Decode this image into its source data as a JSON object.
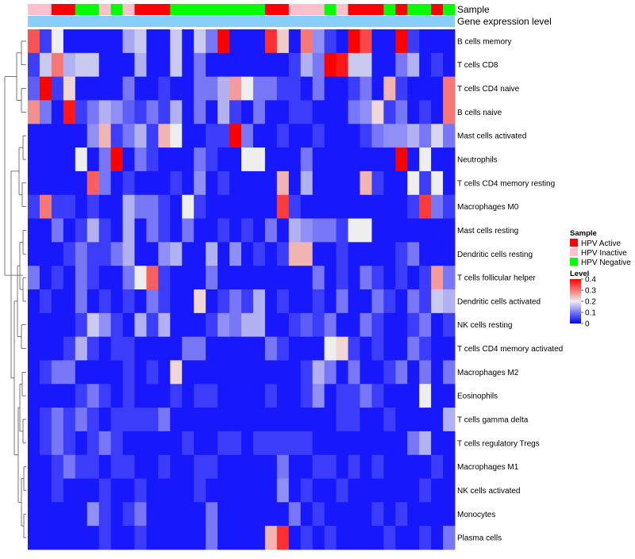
{
  "chart_data": {
    "type": "heatmap",
    "annotation_rows": [
      "Sample",
      "Gene expression level"
    ],
    "rows": [
      "B cells memory",
      "T cells CD8",
      "T cells CD4 naive",
      "B cells naive",
      "Mast cells activated",
      "Neutrophils",
      "T cells CD4 memory resting",
      "Macrophages M0",
      "Mast cells resting",
      "Dendritic cells resting",
      "T cells follicular helper",
      "Dendritic cells activated",
      "NK cells resting",
      "T cells CD4 memory activated",
      "Macrophages M2",
      "Eosinophils",
      "T cells gamma delta",
      "T cells regulatory  Tregs",
      "Macrophages M1",
      "NK cells activated",
      "Monocytes",
      "Plasma cells"
    ],
    "sample_groups": [
      "PI",
      "PI",
      "PA",
      "PA",
      "PN",
      "PN",
      "PI",
      "PN",
      "PI",
      "PA",
      "PA",
      "PA",
      "PN",
      "PN",
      "PN",
      "PN",
      "PN",
      "PN",
      "PN",
      "PN",
      "PA",
      "PA",
      "PI",
      "PI",
      "PI",
      "PN",
      "PI",
      "PA",
      "PA",
      "PA",
      "PN",
      "PA",
      "PN",
      "PN",
      "PA",
      "PN"
    ],
    "values": [
      [
        0.33,
        0.05,
        0.2,
        0.02,
        0.02,
        0.02,
        0.02,
        0.02,
        0.14,
        0.17,
        0.02,
        0.02,
        0.17,
        0.02,
        0.17,
        0.1,
        0.4,
        0.02,
        0.02,
        0.02,
        0.36,
        0.23,
        0.02,
        0.3,
        0.12,
        0.05,
        0.02,
        0.4,
        0.34,
        0.02,
        0.02,
        0.4,
        0.05,
        0.02,
        0.02,
        0.02
      ],
      [
        0.05,
        0.17,
        0.3,
        0.15,
        0.17,
        0.17,
        0.02,
        0.02,
        0.02,
        0.15,
        0.02,
        0.02,
        0.17,
        0.02,
        0.1,
        0.02,
        0.02,
        0.02,
        0.02,
        0.02,
        0.02,
        0.02,
        0.05,
        0.15,
        0.1,
        0.4,
        0.38,
        0.17,
        0.17,
        0.02,
        0.02,
        0.1,
        0.15,
        0.02,
        0.05,
        0.02
      ],
      [
        0.08,
        0.4,
        0.05,
        0.22,
        0.02,
        0.02,
        0.02,
        0.02,
        0.1,
        0.02,
        0.02,
        0.05,
        0.02,
        0.02,
        0.1,
        0.1,
        0.15,
        0.27,
        0.2,
        0.1,
        0.1,
        0.05,
        0.05,
        0.02,
        0.1,
        0.02,
        0.02,
        0.05,
        0.1,
        0.02,
        0.25,
        0.05,
        0.02,
        0.02,
        0.02,
        0.3
      ],
      [
        0.28,
        0.1,
        0.02,
        0.38,
        0.05,
        0.1,
        0.15,
        0.12,
        0.08,
        0.05,
        0.1,
        0.05,
        0.15,
        0.02,
        0.1,
        0.02,
        0.15,
        0.05,
        0.02,
        0.1,
        0.02,
        0.02,
        0.05,
        0.05,
        0.02,
        0.02,
        0.02,
        0.1,
        0.12,
        0.22,
        0.05,
        0.1,
        0.02,
        0.05,
        0.02,
        0.3
      ],
      [
        0.02,
        0.02,
        0.02,
        0.02,
        0.02,
        0.12,
        0.25,
        0.05,
        0.1,
        0.15,
        0.05,
        0.25,
        0.2,
        0.02,
        0.02,
        0.05,
        0.05,
        0.4,
        0.1,
        0.02,
        0.02,
        0.05,
        0.02,
        0.02,
        0.05,
        0.02,
        0.02,
        0.02,
        0.05,
        0.1,
        0.12,
        0.12,
        0.15,
        0.1,
        0.18,
        0.1
      ],
      [
        0.02,
        0.02,
        0.02,
        0.02,
        0.2,
        0.02,
        0.1,
        0.4,
        0.02,
        0.1,
        0.05,
        0.02,
        0.02,
        0.02,
        0.1,
        0.05,
        0.02,
        0.02,
        0.2,
        0.2,
        0.02,
        0.02,
        0.02,
        0.1,
        0.02,
        0.02,
        0.02,
        0.02,
        0.02,
        0.02,
        0.02,
        0.4,
        0.02,
        0.2,
        0.02,
        0.02
      ],
      [
        0.02,
        0.02,
        0.02,
        0.02,
        0.02,
        0.32,
        0.1,
        0.02,
        0.05,
        0.02,
        0.02,
        0.02,
        0.05,
        0.02,
        0.12,
        0.02,
        0.05,
        0.02,
        0.02,
        0.02,
        0.02,
        0.25,
        0.02,
        0.15,
        0.02,
        0.02,
        0.02,
        0.02,
        0.25,
        0.05,
        0.02,
        0.02,
        0.2,
        0.05,
        0.2,
        0.02
      ],
      [
        0.05,
        0.3,
        0.05,
        0.05,
        0.02,
        0.05,
        0.02,
        0.02,
        0.15,
        0.1,
        0.1,
        0.05,
        0.02,
        0.2,
        0.05,
        0.02,
        0.02,
        0.02,
        0.02,
        0.02,
        0.02,
        0.35,
        0.05,
        0.02,
        0.02,
        0.02,
        0.02,
        0.02,
        0.02,
        0.02,
        0.02,
        0.02,
        0.05,
        0.35,
        0.1,
        0.05
      ],
      [
        0.02,
        0.02,
        0.1,
        0.02,
        0.05,
        0.15,
        0.05,
        0.02,
        0.15,
        0.02,
        0.1,
        0.05,
        0.02,
        0.1,
        0.02,
        0.02,
        0.05,
        0.02,
        0.05,
        0.02,
        0.1,
        0.02,
        0.15,
        0.12,
        0.1,
        0.1,
        0.05,
        0.2,
        0.2,
        0.02,
        0.02,
        0.02,
        0.02,
        0.02,
        0.02,
        0.02
      ],
      [
        0.02,
        0.02,
        0.02,
        0.05,
        0.1,
        0.05,
        0.05,
        0.1,
        0.15,
        0.02,
        0.02,
        0.12,
        0.15,
        0.02,
        0.02,
        0.15,
        0.02,
        0.12,
        0.02,
        0.05,
        0.02,
        0.05,
        0.25,
        0.25,
        0.02,
        0.02,
        0.05,
        0.02,
        0.02,
        0.02,
        0.02,
        0.05,
        0.1,
        0.02,
        0.02,
        0.02
      ],
      [
        0.1,
        0.02,
        0.05,
        0.02,
        0.1,
        0.05,
        0.02,
        0.02,
        0.1,
        0.2,
        0.32,
        0.05,
        0.02,
        0.02,
        0.02,
        0.1,
        0.02,
        0.02,
        0.02,
        0.02,
        0.02,
        0.02,
        0.02,
        0.02,
        0.1,
        0.02,
        0.05,
        0.02,
        0.1,
        0.05,
        0.02,
        0.05,
        0.02,
        0.05,
        0.27,
        0.1
      ],
      [
        0.02,
        0.05,
        0.02,
        0.02,
        0.1,
        0.02,
        0.05,
        0.02,
        0.05,
        0.02,
        0.1,
        0.05,
        0.02,
        0.02,
        0.22,
        0.02,
        0.05,
        0.1,
        0.05,
        0.15,
        0.02,
        0.05,
        0.02,
        0.02,
        0.05,
        0.02,
        0.1,
        0.02,
        0.02,
        0.1,
        0.05,
        0.02,
        0.1,
        0.05,
        0.17,
        0.15
      ],
      [
        0.02,
        0.02,
        0.02,
        0.02,
        0.05,
        0.17,
        0.12,
        0.05,
        0.02,
        0.15,
        0.05,
        0.15,
        0.02,
        0.02,
        0.02,
        0.05,
        0.12,
        0.1,
        0.15,
        0.15,
        0.02,
        0.02,
        0.05,
        0.08,
        0.05,
        0.1,
        0.02,
        0.02,
        0.1,
        0.05,
        0.02,
        0.02,
        0.05,
        0.1,
        0.02,
        0.05
      ],
      [
        0.02,
        0.02,
        0.02,
        0.05,
        0.15,
        0.05,
        0.02,
        0.05,
        0.05,
        0.02,
        0.02,
        0.02,
        0.02,
        0.1,
        0.1,
        0.02,
        0.02,
        0.02,
        0.02,
        0.02,
        0.1,
        0.05,
        0.02,
        0.02,
        0.02,
        0.2,
        0.22,
        0.05,
        0.02,
        0.05,
        0.02,
        0.02,
        0.1,
        0.05,
        0.02,
        0.02
      ],
      [
        0.02,
        0.05,
        0.1,
        0.1,
        0.02,
        0.02,
        0.02,
        0.02,
        0.05,
        0.02,
        0.05,
        0.02,
        0.22,
        0.02,
        0.02,
        0.02,
        0.02,
        0.02,
        0.02,
        0.02,
        0.02,
        0.02,
        0.02,
        0.05,
        0.15,
        0.1,
        0.02,
        0.1,
        0.02,
        0.02,
        0.05,
        0.1,
        0.02,
        0.1,
        0.02,
        0.1
      ],
      [
        0.02,
        0.02,
        0.02,
        0.02,
        0.05,
        0.1,
        0.05,
        0.02,
        0.05,
        0.02,
        0.02,
        0.02,
        0.05,
        0.02,
        0.05,
        0.05,
        0.02,
        0.02,
        0.02,
        0.02,
        0.05,
        0.02,
        0.02,
        0.05,
        0.12,
        0.02,
        0.05,
        0.05,
        0.1,
        0.05,
        0.02,
        0.02,
        0.02,
        0.2,
        0.02,
        0.02
      ],
      [
        0.02,
        0.05,
        0.1,
        0.05,
        0.1,
        0.05,
        0.02,
        0.05,
        0.05,
        0.05,
        0.05,
        0.1,
        0.02,
        0.02,
        0.02,
        0.02,
        0.02,
        0.02,
        0.02,
        0.02,
        0.02,
        0.02,
        0.02,
        0.02,
        0.02,
        0.02,
        0.05,
        0.05,
        0.02,
        0.02,
        0.05,
        0.02,
        0.02,
        0.02,
        0.02,
        0.15
      ],
      [
        0.02,
        0.05,
        0.1,
        0.05,
        0.02,
        0.05,
        0.1,
        0.05,
        0.02,
        0.02,
        0.02,
        0.02,
        0.02,
        0.05,
        0.02,
        0.02,
        0.05,
        0.05,
        0.02,
        0.05,
        0.05,
        0.05,
        0.05,
        0.05,
        0.02,
        0.02,
        0.02,
        0.02,
        0.02,
        0.02,
        0.02,
        0.02,
        0.1,
        0.15,
        0.02,
        0.02
      ],
      [
        0.02,
        0.02,
        0.05,
        0.1,
        0.05,
        0.05,
        0.02,
        0.05,
        0.05,
        0.02,
        0.02,
        0.05,
        0.02,
        0.02,
        0.05,
        0.05,
        0.02,
        0.02,
        0.02,
        0.02,
        0.02,
        0.1,
        0.02,
        0.02,
        0.05,
        0.05,
        0.02,
        0.05,
        0.02,
        0.05,
        0.02,
        0.02,
        0.02,
        0.02,
        0.05,
        0.02
      ],
      [
        0.02,
        0.02,
        0.05,
        0.02,
        0.02,
        0.02,
        0.05,
        0.02,
        0.02,
        0.05,
        0.02,
        0.02,
        0.02,
        0.02,
        0.05,
        0.02,
        0.02,
        0.02,
        0.02,
        0.02,
        0.02,
        0.12,
        0.02,
        0.05,
        0.02,
        0.02,
        0.05,
        0.02,
        0.02,
        0.02,
        0.02,
        0.02,
        0.02,
        0.05,
        0.02,
        0.02
      ],
      [
        0.02,
        0.02,
        0.02,
        0.02,
        0.02,
        0.12,
        0.05,
        0.02,
        0.05,
        0.1,
        0.02,
        0.02,
        0.02,
        0.02,
        0.02,
        0.1,
        0.02,
        0.02,
        0.02,
        0.02,
        0.02,
        0.02,
        0.1,
        0.02,
        0.05,
        0.02,
        0.02,
        0.02,
        0.02,
        0.05,
        0.02,
        0.05,
        0.02,
        0.02,
        0.02,
        0.02
      ],
      [
        0.02,
        0.02,
        0.02,
        0.02,
        0.02,
        0.02,
        0.05,
        0.02,
        0.02,
        0.05,
        0.02,
        0.02,
        0.02,
        0.02,
        0.02,
        0.1,
        0.02,
        0.02,
        0.02,
        0.02,
        0.25,
        0.36,
        0.02,
        0.05,
        0.02,
        0.05,
        0.02,
        0.02,
        0.02,
        0.02,
        0.05,
        0.02,
        0.02,
        0.05,
        0.02,
        0.1
      ]
    ],
    "legend_sample": {
      "title": "Sample",
      "items": [
        {
          "key": "PA",
          "label": "HPV Active",
          "color": "#ff0000"
        },
        {
          "key": "PI",
          "label": "HPV Inactive",
          "color": "#ffc0cb"
        },
        {
          "key": "PN",
          "label": "HPV Negative",
          "color": "#00ff00"
        }
      ]
    },
    "legend_level": {
      "title": "Level",
      "ticks": [
        "0.4",
        "0.3",
        "0.2",
        "0.1",
        "0"
      ],
      "range": [
        0,
        0.4
      ],
      "colors": [
        "#0000ff",
        "#eeeeee",
        "#ff0000"
      ]
    },
    "expression_bar_color": "#87cefa"
  }
}
